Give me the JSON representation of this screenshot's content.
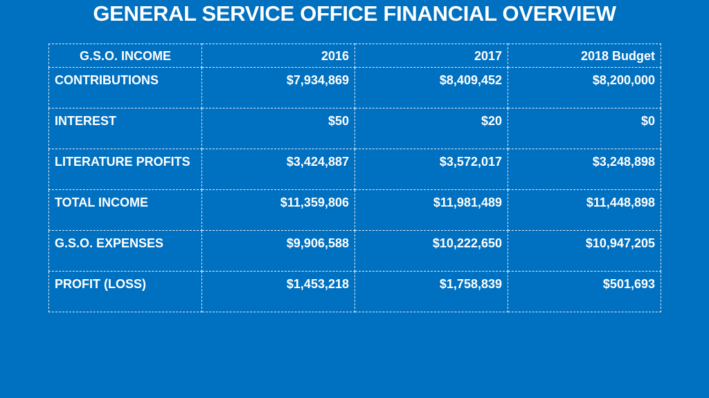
{
  "title": "GENERAL SERVICE OFFICE FINANCIAL OVERVIEW",
  "table": {
    "headers": [
      "G.S.O. INCOME",
      "2016",
      "2017",
      "2018 Budget"
    ],
    "rows": [
      [
        "CONTRIBUTIONS",
        "$7,934,869",
        "$8,409,452",
        "$8,200,000"
      ],
      [
        "INTEREST",
        "$50",
        "$20",
        "$0"
      ],
      [
        "LITERATURE PROFITS",
        "$3,424,887",
        "$3,572,017",
        "$3,248,898"
      ],
      [
        "TOTAL INCOME",
        "$11,359,806",
        "$11,981,489",
        "$11,448,898"
      ],
      [
        "G.S.O. EXPENSES",
        "$9,906,588",
        "$10,222,650",
        "$10,947,205"
      ],
      [
        "PROFIT (LOSS)",
        "$1,453,218",
        "$1,758,839",
        "$501,693"
      ]
    ]
  }
}
